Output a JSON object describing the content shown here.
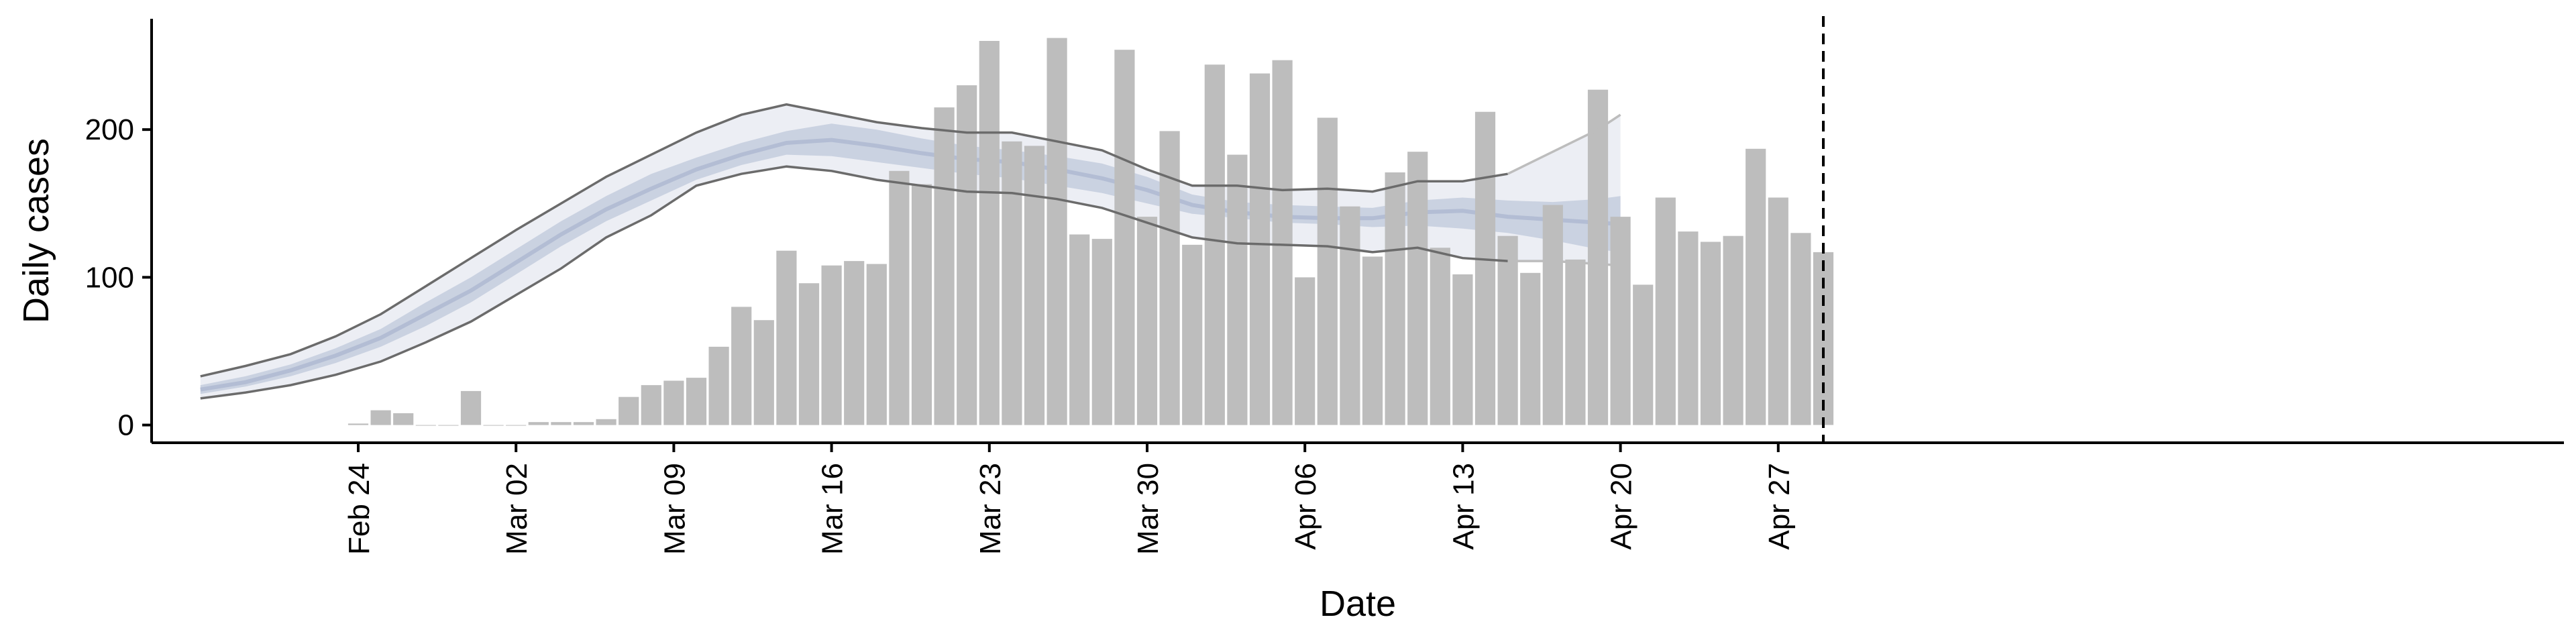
{
  "chart_data": {
    "type": "bar",
    "xlabel": "Date",
    "ylabel": "Daily cases",
    "x_tick_labels": [
      "Feb 24",
      "Mar 02",
      "Mar 09",
      "Mar 16",
      "Mar 23",
      "Mar 30",
      "Apr 06",
      "Apr 13",
      "Apr 20",
      "Apr 27"
    ],
    "y_tick_labels": [
      "0",
      "100",
      "200"
    ],
    "y_ticks": [
      0,
      100,
      200
    ],
    "ylim": [
      -12,
      275
    ],
    "x_range": [
      "2020-02-17",
      "2020-05-03"
    ],
    "grid": false,
    "legend": "none",
    "colors": {
      "bars": "#bdbdbd",
      "band_outer": "#eceef4",
      "band_inner": "#c7cedf",
      "band_outline": "#6b6b6b",
      "forecast_outline": "#bdbdbd",
      "vline": "#000000"
    },
    "reference_line": {
      "date": "2020-04-29",
      "style": "dashed"
    },
    "bars": {
      "x": [
        "2020-02-24",
        "2020-02-25",
        "2020-02-26",
        "2020-02-27",
        "2020-02-28",
        "2020-02-29",
        "2020-03-01",
        "2020-03-02",
        "2020-03-03",
        "2020-03-04",
        "2020-03-05",
        "2020-03-06",
        "2020-03-07",
        "2020-03-08",
        "2020-03-09",
        "2020-03-10",
        "2020-03-11",
        "2020-03-12",
        "2020-03-13",
        "2020-03-14",
        "2020-03-15",
        "2020-03-16",
        "2020-03-17",
        "2020-03-18",
        "2020-03-19",
        "2020-03-20",
        "2020-03-21",
        "2020-03-22",
        "2020-03-23",
        "2020-03-24",
        "2020-03-25",
        "2020-03-26",
        "2020-03-27",
        "2020-03-28",
        "2020-03-29",
        "2020-03-30",
        "2020-03-31",
        "2020-04-01",
        "2020-04-02",
        "2020-04-03",
        "2020-04-04",
        "2020-04-05",
        "2020-04-06",
        "2020-04-07",
        "2020-04-08",
        "2020-04-09",
        "2020-04-10",
        "2020-04-11",
        "2020-04-12",
        "2020-04-13",
        "2020-04-14",
        "2020-04-15",
        "2020-04-16",
        "2020-04-17",
        "2020-04-18",
        "2020-04-19",
        "2020-04-20",
        "2020-04-21",
        "2020-04-22",
        "2020-04-23",
        "2020-04-24",
        "2020-04-25",
        "2020-04-26",
        "2020-04-27",
        "2020-04-28",
        "2020-04-29"
      ],
      "values": [
        1,
        10,
        8,
        0,
        0,
        23,
        0,
        0,
        2,
        2,
        2,
        4,
        19,
        27,
        30,
        32,
        53,
        80,
        71,
        118,
        96,
        108,
        111,
        109,
        172,
        163,
        215,
        230,
        260,
        192,
        189,
        262,
        129,
        126,
        254,
        141,
        199,
        122,
        244,
        183,
        238,
        247,
        100,
        208,
        148,
        114,
        171,
        185,
        120,
        102,
        212,
        128,
        103,
        149,
        112,
        227,
        141,
        95,
        154,
        131,
        124,
        128,
        187,
        154,
        130,
        117
      ]
    },
    "estimate_band": {
      "x": [
        "2020-02-17",
        "2020-02-19",
        "2020-02-21",
        "2020-02-23",
        "2020-02-25",
        "2020-02-27",
        "2020-02-29",
        "2020-03-02",
        "2020-03-04",
        "2020-03-06",
        "2020-03-08",
        "2020-03-10",
        "2020-03-12",
        "2020-03-14",
        "2020-03-16",
        "2020-03-18",
        "2020-03-20",
        "2020-03-22",
        "2020-03-24",
        "2020-03-26",
        "2020-03-28",
        "2020-03-30",
        "2020-04-01",
        "2020-04-03",
        "2020-04-05",
        "2020-04-07",
        "2020-04-09",
        "2020-04-11",
        "2020-04-13",
        "2020-04-15",
        "2020-04-17",
        "2020-04-19",
        "2020-04-20"
      ],
      "outer_lower": [
        18,
        22,
        27,
        34,
        43,
        56,
        70,
        88,
        106,
        127,
        142,
        162,
        170,
        175,
        172,
        166,
        162,
        158,
        157,
        153,
        147,
        137,
        127,
        123,
        122,
        121,
        117,
        120,
        113,
        111,
        111,
        109,
        108
      ],
      "inner_lower": [
        21,
        26,
        33,
        42,
        53,
        67,
        83,
        102,
        121,
        138,
        152,
        166,
        176,
        183,
        182,
        178,
        174,
        170,
        167,
        162,
        157,
        150,
        143,
        140,
        137,
        136,
        134,
        135,
        133,
        130,
        125,
        119,
        117
      ],
      "median": [
        24,
        29,
        37,
        47,
        59,
        75,
        91,
        110,
        129,
        146,
        160,
        173,
        183,
        191,
        193,
        189,
        184,
        180,
        178,
        173,
        167,
        159,
        149,
        144,
        141,
        140,
        140,
        144,
        145,
        141,
        139,
        137,
        136
      ],
      "inner_upper": [
        27,
        33,
        41,
        52,
        65,
        83,
        100,
        119,
        138,
        155,
        170,
        181,
        191,
        199,
        204,
        200,
        194,
        189,
        186,
        182,
        177,
        168,
        156,
        151,
        149,
        148,
        147,
        152,
        154,
        152,
        151,
        153,
        155
      ],
      "outer_upper": [
        33,
        40,
        48,
        60,
        75,
        94,
        113,
        132,
        150,
        168,
        183,
        198,
        210,
        217,
        211,
        205,
        201,
        198,
        198,
        192,
        186,
        173,
        162,
        162,
        159,
        160,
        158,
        165,
        165,
        170,
        185,
        200,
        210
      ]
    }
  }
}
